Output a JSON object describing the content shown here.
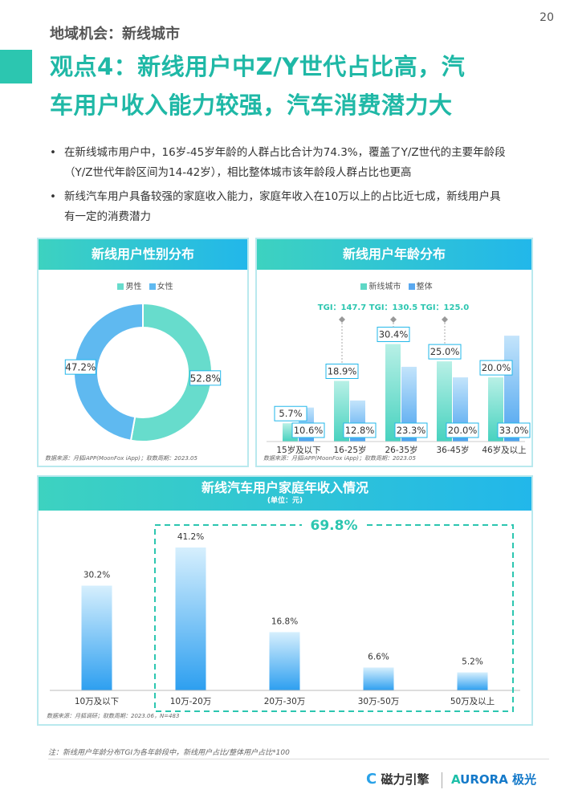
{
  "page": {
    "number": "20",
    "section": "地域机会：新线城市",
    "headline_line1": "观点4：新线用户中Z/Y世代占比高，汽",
    "headline_line2": "车用户收入能力较强，汽车消费潜力大",
    "bullets": [
      {
        "line1": "在新线城市用户中，16岁-45岁年龄的人群占比合计为74.3%，覆盖了Y/Z世代的主要年龄段",
        "line2": "（Y/Z世代年龄区间为14-42岁），相比整体城市该年龄段人群占比也更高"
      },
      {
        "line1": "新线汽车用户具备较强的家庭收入能力，家庭年收入在10万以上的占比近七成，新线用户具",
        "line2": "有一定的消费潜力"
      }
    ],
    "footnote": "注：新线用户年龄分布TGI为各年龄段中，新线用户占比/整体用户占比*100",
    "logo_left": "磁力引擎",
    "logo_left_mark": "C",
    "logo_right": "URORA 极光",
    "logo_right_mark": "A"
  },
  "colors": {
    "teal": "#2cc6b0",
    "blue": "#22b7ea",
    "gender_male": "#67dccc",
    "gender_female": "#5fb9f0",
    "age_newline": "#5fd8c6",
    "age_overall": "#5aa9f0",
    "income_bar": "#2d9ff0",
    "dashed": "#2cc6b0"
  },
  "chart_data": [
    {
      "type": "pie",
      "title": "新线用户性别分布",
      "labels": [
        "男性",
        "女性"
      ],
      "values": [
        52.8,
        47.2
      ],
      "value_labels": [
        "52.8%",
        "47.2%"
      ],
      "donut": true,
      "legend": "top-center",
      "source": "数据来源：月狐iAPP(MoonFox iApp)；取数周期：2023.05"
    },
    {
      "type": "bar",
      "title": "新线用户年龄分布",
      "categories": [
        "15岁及以下",
        "16-25岁",
        "26-35岁",
        "36-45岁",
        "46岁及以上"
      ],
      "series": [
        {
          "name": "新线城市",
          "values": [
            5.7,
            18.9,
            30.4,
            25.0,
            20.0
          ],
          "labels": [
            "5.7%",
            "18.9%",
            "30.4%",
            "25.0%",
            "20.0%"
          ]
        },
        {
          "name": "整体",
          "values": [
            10.6,
            12.8,
            23.3,
            20.0,
            33.0
          ],
          "labels": [
            "10.6%",
            "12.8%",
            "23.3%",
            "20.0%",
            "33.0%"
          ]
        }
      ],
      "annotations": [
        {
          "category": "16-25岁",
          "text": "TGI：147.7"
        },
        {
          "category": "26-35岁",
          "text": "TGI：130.5"
        },
        {
          "category": "36-45岁",
          "text": "TGI：125.0"
        }
      ],
      "ylim": [
        0,
        35
      ],
      "legend": "top-center",
      "grid": false,
      "source": "数据来源：月狐iAPP(MoonFox iApp)；取数周期：2023.05"
    },
    {
      "type": "bar",
      "title": "新线汽车用户家庭年收入情况",
      "unit": "(单位：元)",
      "categories": [
        "10万及以下",
        "10万-20万",
        "20万-30万",
        "30万-50万",
        "50万及以上"
      ],
      "values": [
        30.2,
        41.2,
        16.8,
        6.6,
        5.2
      ],
      "value_labels": [
        "30.2%",
        "41.2%",
        "16.8%",
        "6.6%",
        "5.2%"
      ],
      "highlight": {
        "text": "69.8%",
        "from": "10万-20万",
        "to": "50万及以上"
      },
      "ylim": [
        0,
        45
      ],
      "grid": false,
      "source": "数据来源：月狐调研；取数周期：2023.06，N=483"
    }
  ]
}
